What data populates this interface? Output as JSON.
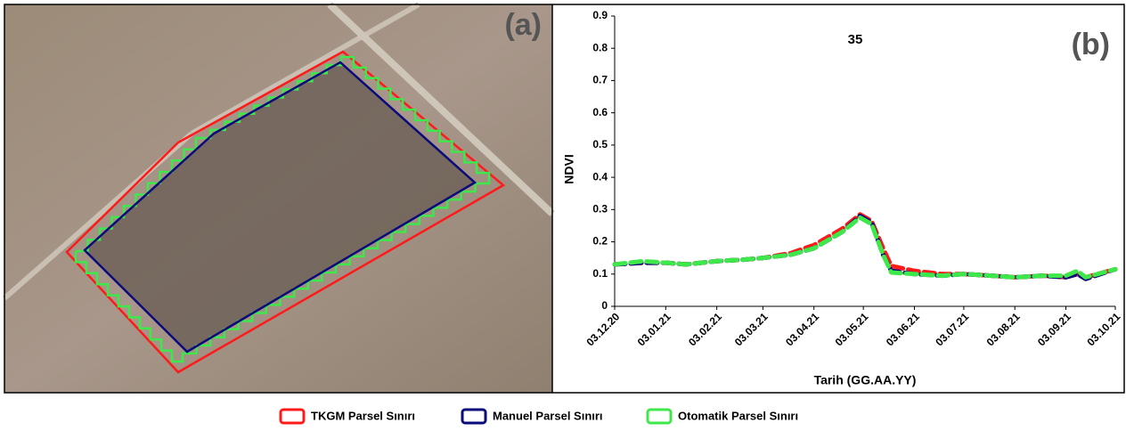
{
  "image_panel": {
    "label": "(a)"
  },
  "chart_data": {
    "type": "line",
    "panel_label": "(b)",
    "annotation": "35",
    "x_label": "Tarih (GG.AA.YY)",
    "y_label": "NDVI",
    "x": [
      "2020-12-03",
      "2020-12-20",
      "2021-01-03",
      "2021-01-15",
      "2021-02-03",
      "2021-02-20",
      "2021-03-03",
      "2021-03-20",
      "2021-04-03",
      "2021-04-20",
      "2021-05-01",
      "2021-05-08",
      "2021-05-15",
      "2021-05-20",
      "2021-06-03",
      "2021-06-20",
      "2021-07-03",
      "2021-07-20",
      "2021-08-03",
      "2021-08-20",
      "2021-09-03",
      "2021-09-10",
      "2021-09-15",
      "2021-10-03"
    ],
    "series": [
      {
        "name": "TKGM  Parsel Sınırı",
        "color": "#ff1a1a",
        "values": [
          0.13,
          0.135,
          0.135,
          0.13,
          0.14,
          0.145,
          0.15,
          0.165,
          0.19,
          0.24,
          0.285,
          0.265,
          0.18,
          0.125,
          0.11,
          0.1,
          0.1,
          0.095,
          0.09,
          0.095,
          0.09,
          0.1,
          0.09,
          0.115
        ]
      },
      {
        "name": "Manuel Parsel Sınırı",
        "color": "#0a0a7a",
        "values": [
          0.13,
          0.135,
          0.135,
          0.13,
          0.14,
          0.145,
          0.15,
          0.16,
          0.18,
          0.23,
          0.28,
          0.26,
          0.16,
          0.11,
          0.1,
          0.095,
          0.1,
          0.095,
          0.09,
          0.095,
          0.09,
          0.1,
          0.085,
          0.115
        ]
      },
      {
        "name": "Otomatik Parsel Sınırı",
        "color": "#3ee84a",
        "values": [
          0.13,
          0.14,
          0.135,
          0.13,
          0.14,
          0.145,
          0.15,
          0.16,
          0.18,
          0.23,
          0.275,
          0.255,
          0.16,
          0.105,
          0.1,
          0.095,
          0.1,
          0.095,
          0.09,
          0.095,
          0.095,
          0.11,
          0.09,
          0.115
        ]
      }
    ],
    "xlim": [
      "2020-12-03",
      "2021-10-03"
    ],
    "xticks": [
      {
        "value": "2020-12-03",
        "label": "03.12.20"
      },
      {
        "value": "2021-01-03",
        "label": "03.01.21"
      },
      {
        "value": "2021-02-03",
        "label": "03.02.21"
      },
      {
        "value": "2021-03-03",
        "label": "03.03.21"
      },
      {
        "value": "2021-04-03",
        "label": "03.04.21"
      },
      {
        "value": "2021-05-03",
        "label": "03.05.21"
      },
      {
        "value": "2021-06-03",
        "label": "03.06.21"
      },
      {
        "value": "2021-07-03",
        "label": "03.07.21"
      },
      {
        "value": "2021-08-03",
        "label": "03.08.21"
      },
      {
        "value": "2021-09-03",
        "label": "03.09.21"
      },
      {
        "value": "2021-10-03",
        "label": "03.10.21"
      }
    ],
    "ylim": [
      0,
      0.9
    ],
    "yticks": [
      0,
      0.1,
      0.2,
      0.3,
      0.4,
      0.5,
      0.6,
      0.7,
      0.8,
      0.9
    ],
    "grid": false
  }
}
